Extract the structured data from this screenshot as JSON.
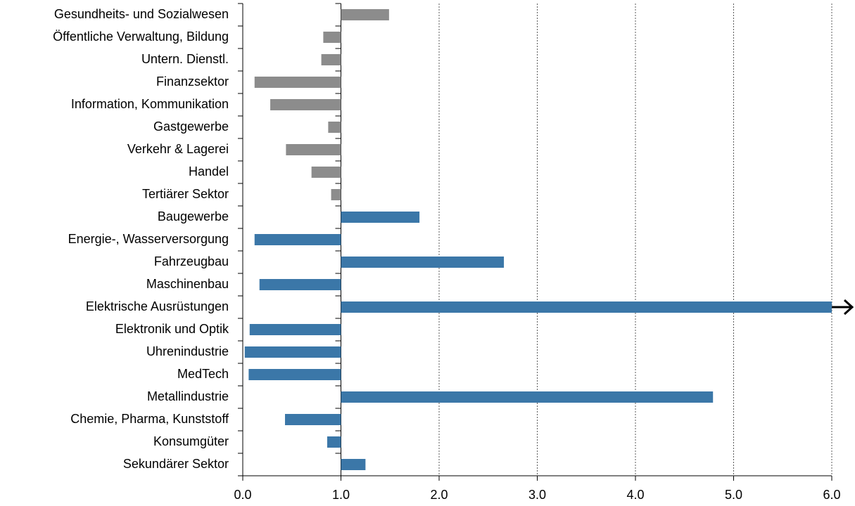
{
  "chart_data": {
    "type": "hbar",
    "categories": [
      "Gesundheits- und Sozialwesen",
      "Öffentliche Verwaltung, Bildung",
      "Untern. Dienstl.",
      "Finanzsektor",
      "Information, Kommunikation",
      "Gastgewerbe",
      "Verkehr & Lagerei",
      "Handel",
      "Tertiärer Sektor",
      "Baugewerbe",
      "Energie-, Wasserversorgung",
      "Fahrzeugbau",
      "Maschinenbau",
      "Elektrische Ausrüstungen",
      "Elektronik und Optik",
      "Uhrenindustrie",
      "MedTech",
      "Metallindustrie",
      "Chemie, Pharma, Kunststoff",
      "Konsumgüter",
      "Sekundärer Sektor"
    ],
    "values": [
      1.49,
      0.82,
      0.8,
      0.12,
      0.28,
      0.87,
      0.44,
      0.7,
      0.9,
      1.8,
      0.12,
      2.66,
      0.17,
      6.0,
      0.07,
      0.02,
      0.06,
      4.79,
      0.43,
      0.86,
      1.25
    ],
    "colors": [
      "#8c8c8c",
      "#8c8c8c",
      "#8c8c8c",
      "#8c8c8c",
      "#8c8c8c",
      "#8c8c8c",
      "#8c8c8c",
      "#8c8c8c",
      "#8c8c8c",
      "#3b77a8",
      "#3b77a8",
      "#3b77a8",
      "#3b77a8",
      "#3b77a8",
      "#3b77a8",
      "#3b77a8",
      "#3b77a8",
      "#3b77a8",
      "#3b77a8",
      "#3b77a8",
      "#3b77a8"
    ],
    "baseline": 1,
    "xlim": [
      0,
      6
    ],
    "xticks": [
      {
        "value": 0,
        "label": "0.0"
      },
      {
        "value": 1,
        "label": "1.0"
      },
      {
        "value": 2,
        "label": "2.0"
      },
      {
        "value": 3,
        "label": "3.0"
      },
      {
        "value": 4,
        "label": "4.0"
      },
      {
        "value": 5,
        "label": "5.0"
      },
      {
        "value": 6,
        "label": "6.0"
      }
    ],
    "grid": true
  }
}
